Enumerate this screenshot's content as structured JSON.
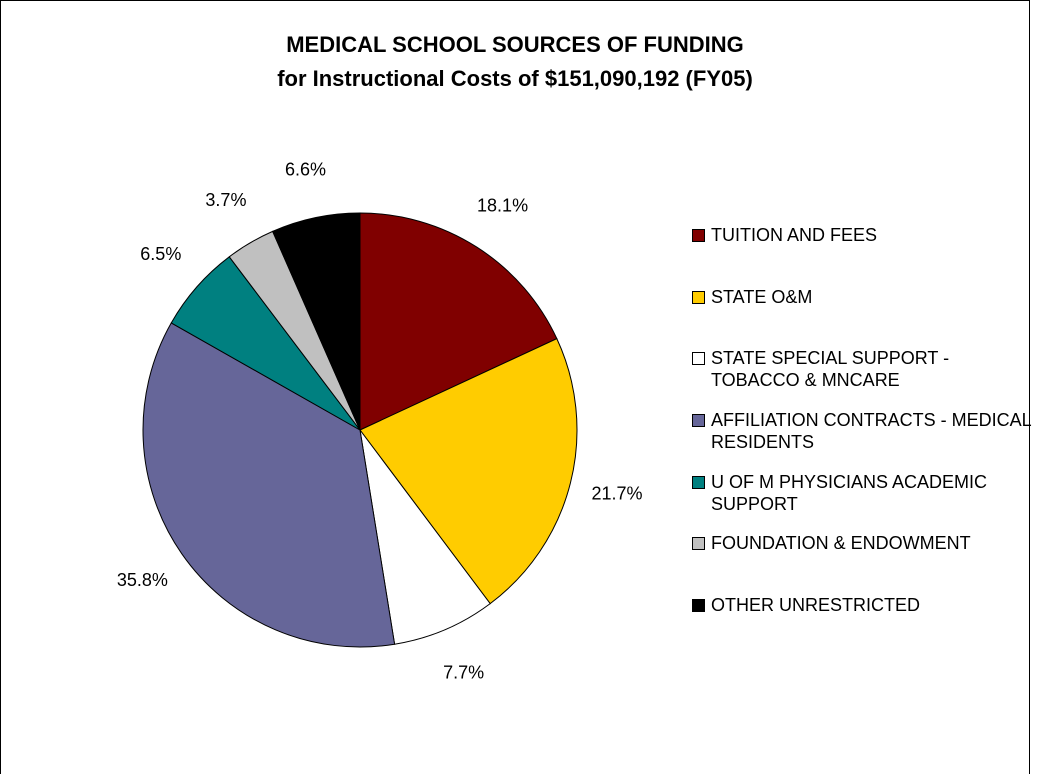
{
  "chart_data": {
    "type": "pie",
    "title": "MEDICAL SCHOOL SOURCES OF FUNDING",
    "subtitle": "for Instructional Costs of $151,090,192 (FY05)",
    "categories": [
      "TUITION AND FEES",
      "STATE O&M",
      "STATE SPECIAL SUPPORT - TOBACCO & MNCARE",
      "AFFILIATION CONTRACTS - MEDICAL RESIDENTS",
      "U OF M PHYSICIANS ACADEMIC SUPPORT",
      "FOUNDATION & ENDOWMENT",
      "OTHER UNRESTRICTED"
    ],
    "values": [
      18.1,
      21.7,
      7.7,
      35.8,
      6.5,
      3.7,
      6.6
    ],
    "value_labels": [
      "18.1%",
      "21.7%",
      "7.7%",
      "35.8%",
      "6.5%",
      "3.7%",
      "6.6%"
    ],
    "colors": [
      "#800000",
      "#ffcc00",
      "#ffffff",
      "#666699",
      "#008080",
      "#c0c0c0",
      "#000000"
    ],
    "legend": "right"
  }
}
